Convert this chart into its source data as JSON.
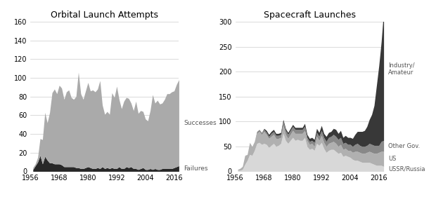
{
  "title1": "Orbital Launch Attempts",
  "title2": "Spacecraft Launches",
  "years": [
    1957,
    1958,
    1959,
    1960,
    1961,
    1962,
    1963,
    1964,
    1965,
    1966,
    1967,
    1968,
    1969,
    1970,
    1971,
    1972,
    1973,
    1974,
    1975,
    1976,
    1977,
    1978,
    1979,
    1980,
    1981,
    1982,
    1983,
    1984,
    1985,
    1986,
    1987,
    1988,
    1989,
    1990,
    1991,
    1992,
    1993,
    1994,
    1995,
    1996,
    1997,
    1998,
    1999,
    2000,
    2001,
    2002,
    2003,
    2004,
    2005,
    2006,
    2007,
    2008,
    2009,
    2010,
    2011,
    2012,
    2013,
    2014,
    2015,
    2016,
    2017,
    2018
  ],
  "failures": [
    2,
    6,
    10,
    17,
    8,
    16,
    12,
    9,
    9,
    8,
    8,
    8,
    7,
    5,
    5,
    5,
    5,
    5,
    4,
    4,
    3,
    3,
    4,
    5,
    4,
    3,
    3,
    4,
    3,
    5,
    3,
    4,
    3,
    4,
    3,
    3,
    5,
    3,
    3,
    5,
    4,
    5,
    3,
    3,
    2,
    3,
    4,
    2,
    2,
    3,
    2,
    3,
    2,
    2,
    3,
    3,
    3,
    3,
    3,
    4,
    5,
    6
  ],
  "successes": [
    2,
    2,
    5,
    18,
    26,
    47,
    40,
    54,
    75,
    80,
    75,
    84,
    82,
    72,
    80,
    82,
    74,
    72,
    76,
    102,
    80,
    74,
    82,
    90,
    82,
    84,
    82,
    84,
    94,
    66,
    58,
    60,
    58,
    80,
    76,
    88,
    72,
    64,
    72,
    74,
    74,
    68,
    62,
    72,
    60,
    62,
    60,
    54,
    52,
    62,
    80,
    70,
    74,
    70,
    70,
    74,
    80,
    80,
    82,
    82,
    88,
    92
  ],
  "ussr_russia": [
    2,
    2,
    4,
    14,
    22,
    34,
    32,
    42,
    56,
    58,
    54,
    56,
    54,
    48,
    52,
    56,
    50,
    52,
    56,
    76,
    62,
    56,
    62,
    68,
    62,
    64,
    62,
    62,
    68,
    50,
    44,
    46,
    42,
    56,
    52,
    58,
    46,
    38,
    42,
    44,
    44,
    40,
    36,
    38,
    30,
    32,
    30,
    28,
    24,
    22,
    22,
    20,
    18,
    18,
    18,
    18,
    16,
    14,
    12,
    12,
    12,
    10
  ],
  "us": [
    2,
    4,
    6,
    18,
    12,
    24,
    18,
    18,
    20,
    22,
    20,
    24,
    20,
    18,
    18,
    18,
    16,
    14,
    12,
    16,
    12,
    10,
    12,
    14,
    14,
    12,
    14,
    14,
    14,
    12,
    10,
    10,
    8,
    14,
    10,
    14,
    12,
    12,
    14,
    14,
    16,
    16,
    14,
    16,
    14,
    14,
    12,
    14,
    14,
    18,
    18,
    18,
    18,
    18,
    20,
    22,
    22,
    22,
    24,
    26,
    28,
    30
  ],
  "other_gov": [
    0,
    0,
    0,
    0,
    0,
    0,
    0,
    0,
    4,
    4,
    4,
    4,
    4,
    4,
    6,
    6,
    6,
    6,
    6,
    8,
    8,
    8,
    8,
    8,
    8,
    8,
    8,
    8,
    8,
    6,
    6,
    6,
    8,
    8,
    8,
    10,
    10,
    10,
    12,
    12,
    14,
    14,
    14,
    14,
    12,
    12,
    12,
    12,
    12,
    14,
    16,
    14,
    14,
    14,
    14,
    16,
    16,
    16,
    16,
    14,
    20,
    22
  ],
  "industry_amateur": [
    0,
    0,
    0,
    0,
    0,
    0,
    0,
    0,
    0,
    0,
    0,
    2,
    4,
    4,
    4,
    4,
    4,
    4,
    4,
    4,
    4,
    4,
    4,
    4,
    4,
    4,
    4,
    4,
    6,
    6,
    6,
    6,
    6,
    8,
    8,
    10,
    8,
    10,
    10,
    10,
    12,
    14,
    12,
    14,
    12,
    14,
    14,
    14,
    16,
    20,
    24,
    28,
    30,
    32,
    38,
    48,
    60,
    80,
    120,
    160,
    200,
    260
  ],
  "ylim1": [
    0,
    160
  ],
  "ylim2": [
    0,
    300
  ],
  "yticks1": [
    0,
    20,
    40,
    60,
    80,
    100,
    120,
    140,
    160
  ],
  "yticks2": [
    0,
    50,
    100,
    150,
    200,
    250,
    300
  ],
  "xticks": [
    1956,
    1968,
    1980,
    1992,
    2004,
    2016
  ],
  "color_failures": "#282828",
  "color_successes": "#aaaaaa",
  "color_ussr": "#d8d8d8",
  "color_us": "#b0b0b0",
  "color_other_gov": "#888888",
  "color_industry": "#383838",
  "label_successes": "Successes",
  "label_failures": "Failures",
  "label_industry": "Industry/\nAmateur",
  "label_other_gov": "Other Gov.",
  "label_us": "US",
  "label_ussr": "USSR/Russia"
}
